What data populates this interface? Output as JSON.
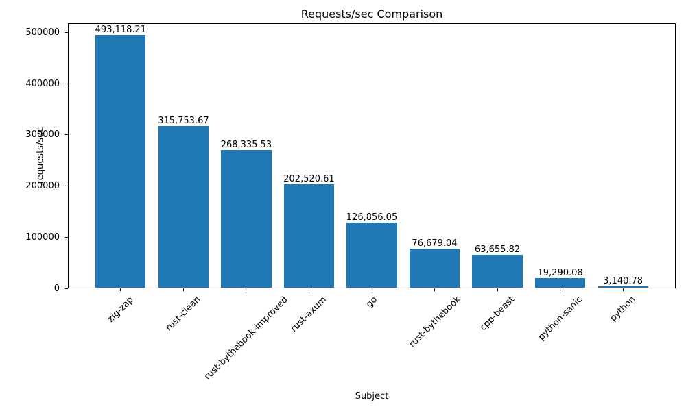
{
  "chart_data": {
    "type": "bar",
    "title": "Requests/sec Comparison",
    "xlabel": "Subject",
    "ylabel": "requests/sec",
    "categories": [
      "zig-zap",
      "rust-clean",
      "rust-bythebook-improved",
      "rust-axum",
      "go",
      "rust-bythebook",
      "cpp-beast",
      "python-sanic",
      "python"
    ],
    "values": [
      493118.21,
      315753.67,
      268335.53,
      202520.61,
      126856.05,
      76679.04,
      63655.82,
      19290.08,
      3140.78
    ],
    "bar_labels": [
      "493,118.21",
      "315,753.67",
      "268,335.53",
      "202,520.61",
      "126,856.05",
      "76,679.04",
      "63,655.82",
      "19,290.08",
      "3,140.78"
    ],
    "y_ticks": [
      0,
      100000,
      200000,
      300000,
      400000,
      500000
    ],
    "y_tick_labels": [
      "0",
      "100000",
      "200000",
      "300000",
      "400000",
      "500000"
    ],
    "ylim": [
      0,
      517774
    ],
    "bar_color": "#1f77b4",
    "axis_color": "#000000",
    "grid": false,
    "legend": "none",
    "x_tick_rotation_deg": 45
  }
}
